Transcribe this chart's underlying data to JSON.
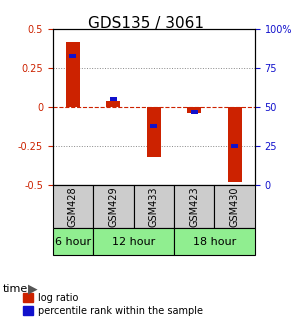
{
  "title": "GDS135 / 3061",
  "samples": [
    "GSM428",
    "GSM429",
    "GSM433",
    "GSM423",
    "GSM430"
  ],
  "log_ratios": [
    0.42,
    0.04,
    -0.32,
    -0.04,
    -0.48
  ],
  "percentile_ranks": [
    0.83,
    0.55,
    0.38,
    0.47,
    0.25
  ],
  "time_groups": [
    {
      "label": "6 hour",
      "samples": [
        "GSM428"
      ],
      "color": "#90ee90"
    },
    {
      "label": "12 hour",
      "samples": [
        "GSM429",
        "GSM433"
      ],
      "color": "#90ee90"
    },
    {
      "label": "18 hour",
      "samples": [
        "GSM423",
        "GSM430"
      ],
      "color": "#90ee90"
    }
  ],
  "time_spans": [
    {
      "start": 0,
      "end": 1,
      "label": "6 hour"
    },
    {
      "start": 1,
      "end": 3,
      "label": "12 hour"
    },
    {
      "start": 3,
      "end": 5,
      "label": "18 hour"
    }
  ],
  "ylim_left": [
    -0.5,
    0.5
  ],
  "ylim_right": [
    0,
    100
  ],
  "bar_color_red": "#cc2200",
  "bar_color_blue": "#1111cc",
  "grid_color": "#888888",
  "zero_line_color": "#cc2200",
  "background_plot": "#ffffff",
  "background_label": "#cccccc",
  "background_time": "#90ee90",
  "legend_red_label": "log ratio",
  "legend_blue_label": "percentile rank within the sample",
  "bar_width": 0.35
}
